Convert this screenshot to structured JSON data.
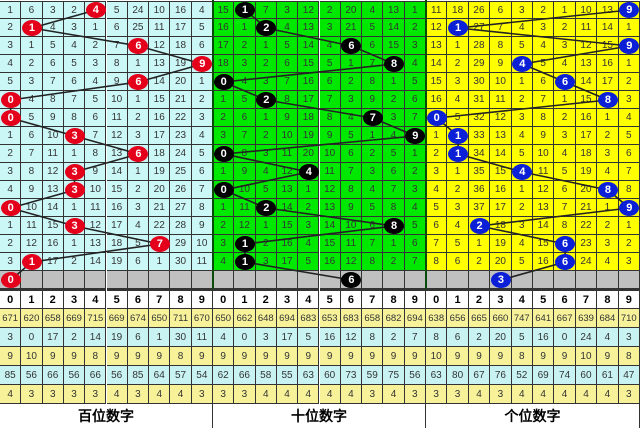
{
  "panels": [
    {
      "title": "百位数字",
      "colors": {
        "grid_bg": "#ccf7f7",
        "ball": "#e4001b",
        "ball_text": "#ffffff",
        "line": "#222222"
      },
      "rows": [
        {
          "cells": [
            1,
            6,
            3,
            2,
            4,
            5,
            24,
            10,
            16,
            4
          ],
          "hit": 4
        },
        {
          "cells": [
            2,
            1,
            4,
            3,
            1,
            6,
            25,
            11,
            17,
            5
          ],
          "hit": 1
        },
        {
          "cells": [
            3,
            1,
            5,
            4,
            2,
            7,
            6,
            12,
            18,
            6
          ],
          "hit": 6
        },
        {
          "cells": [
            4,
            2,
            6,
            5,
            3,
            8,
            1,
            13,
            19,
            9
          ],
          "hit": 9
        },
        {
          "cells": [
            5,
            3,
            7,
            6,
            4,
            9,
            6,
            14,
            20,
            1
          ],
          "hit": 6
        },
        {
          "cells": [
            0,
            4,
            8,
            7,
            5,
            10,
            1,
            15,
            21,
            2
          ],
          "hit": 0
        },
        {
          "cells": [
            0,
            5,
            9,
            8,
            6,
            11,
            2,
            16,
            22,
            3
          ],
          "hit": 0
        },
        {
          "cells": [
            1,
            6,
            10,
            3,
            7,
            12,
            3,
            17,
            23,
            4
          ],
          "hit": 3
        },
        {
          "cells": [
            2,
            7,
            11,
            1,
            8,
            13,
            6,
            18,
            24,
            5
          ],
          "hit": 6
        },
        {
          "cells": [
            3,
            8,
            12,
            3,
            9,
            14,
            1,
            19,
            25,
            6
          ],
          "hit": 3
        },
        {
          "cells": [
            4,
            9,
            13,
            3,
            10,
            15,
            2,
            20,
            26,
            7
          ],
          "hit": 3
        },
        {
          "cells": [
            0,
            10,
            14,
            1,
            11,
            16,
            3,
            21,
            27,
            8
          ],
          "hit": 0
        },
        {
          "cells": [
            1,
            11,
            15,
            3,
            12,
            17,
            4,
            22,
            28,
            9
          ],
          "hit": 3
        },
        {
          "cells": [
            2,
            12,
            16,
            1,
            13,
            18,
            5,
            7,
            29,
            10
          ],
          "hit": 7
        },
        {
          "cells": [
            3,
            1,
            17,
            2,
            14,
            19,
            6,
            1,
            30,
            11
          ],
          "hit": 1
        },
        {
          "cells": [
            "",
            "",
            "",
            "",
            "",
            "",
            "",
            "",
            "",
            ""
          ],
          "hit": 0,
          "pending": true
        }
      ],
      "header": [
        "0",
        "1",
        "2",
        "3",
        "4",
        "5",
        "6",
        "7",
        "8",
        "9"
      ],
      "stats": [
        [
          671,
          620,
          658,
          669,
          715,
          669,
          674,
          650,
          711,
          670
        ],
        [
          3,
          0,
          17,
          2,
          14,
          19,
          6,
          1,
          30,
          11
        ],
        [
          9,
          10,
          9,
          9,
          8,
          9,
          9,
          9,
          8,
          9
        ],
        [
          85,
          56,
          66,
          56,
          66,
          56,
          85,
          64,
          57,
          54
        ],
        [
          4,
          3,
          3,
          3,
          3,
          4,
          3,
          4,
          4,
          3
        ]
      ]
    },
    {
      "title": "十位数字",
      "colors": {
        "grid_bg": "#00e800",
        "ball": "#000000",
        "ball_text": "#ffffff",
        "line": "#222222"
      },
      "rows": [
        {
          "cells": [
            15,
            1,
            7,
            3,
            12,
            2,
            20,
            4,
            13,
            1
          ],
          "hit": 1
        },
        {
          "cells": [
            16,
            1,
            2,
            4,
            13,
            3,
            21,
            5,
            14,
            2
          ],
          "hit": 2
        },
        {
          "cells": [
            17,
            2,
            1,
            5,
            14,
            4,
            6,
            6,
            15,
            3
          ],
          "hit": 6
        },
        {
          "cells": [
            18,
            3,
            2,
            6,
            15,
            5,
            1,
            7,
            8,
            4
          ],
          "hit": 8
        },
        {
          "cells": [
            0,
            4,
            3,
            7,
            16,
            6,
            2,
            8,
            1,
            5
          ],
          "hit": 0
        },
        {
          "cells": [
            1,
            5,
            2,
            8,
            17,
            7,
            3,
            9,
            2,
            6
          ],
          "hit": 2
        },
        {
          "cells": [
            2,
            6,
            1,
            9,
            18,
            8,
            4,
            7,
            3,
            7
          ],
          "hit": 7
        },
        {
          "cells": [
            3,
            7,
            2,
            10,
            19,
            9,
            5,
            1,
            4,
            9
          ],
          "hit": 9
        },
        {
          "cells": [
            0,
            8,
            3,
            11,
            20,
            10,
            6,
            2,
            5,
            1
          ],
          "hit": 0
        },
        {
          "cells": [
            1,
            9,
            4,
            12,
            4,
            11,
            7,
            3,
            6,
            2
          ],
          "hit": 4
        },
        {
          "cells": [
            0,
            10,
            5,
            13,
            1,
            12,
            8,
            4,
            7,
            3
          ],
          "hit": 0
        },
        {
          "cells": [
            1,
            11,
            2,
            14,
            2,
            13,
            9,
            5,
            8,
            4
          ],
          "hit": 2
        },
        {
          "cells": [
            2,
            12,
            1,
            15,
            3,
            14,
            10,
            6,
            8,
            5
          ],
          "hit": 8
        },
        {
          "cells": [
            3,
            1,
            2,
            16,
            4,
            15,
            11,
            7,
            1,
            6
          ],
          "hit": 1
        },
        {
          "cells": [
            4,
            1,
            3,
            17,
            5,
            16,
            12,
            8,
            2,
            7
          ],
          "hit": 1
        },
        {
          "cells": [
            "",
            "",
            "",
            "",
            "",
            "",
            "",
            "",
            "",
            ""
          ],
          "hit": 6,
          "pending": true
        }
      ],
      "header": [
        "0",
        "1",
        "2",
        "3",
        "4",
        "5",
        "6",
        "7",
        "8",
        "9"
      ],
      "stats": [
        [
          650,
          662,
          648,
          694,
          683,
          653,
          683,
          658,
          682,
          694
        ],
        [
          4,
          0,
          3,
          17,
          5,
          16,
          12,
          8,
          2,
          7
        ],
        [
          9,
          9,
          9,
          9,
          9,
          9,
          9,
          9,
          9,
          9
        ],
        [
          62,
          66,
          58,
          55,
          63,
          60,
          73,
          59,
          75,
          56
        ],
        [
          3,
          3,
          4,
          4,
          4,
          4,
          4,
          3,
          4,
          3
        ]
      ]
    },
    {
      "title": "个位数字",
      "colors": {
        "grid_bg": "#ffff00",
        "ball": "#0a1fd6",
        "ball_text": "#ffffff",
        "line": "#222222"
      },
      "rows": [
        {
          "cells": [
            11,
            18,
            26,
            6,
            3,
            2,
            1,
            10,
            13,
            9
          ],
          "hit": 9
        },
        {
          "cells": [
            12,
            1,
            27,
            7,
            4,
            3,
            2,
            11,
            14,
            1
          ],
          "hit": 1
        },
        {
          "cells": [
            13,
            1,
            28,
            8,
            5,
            4,
            3,
            12,
            15,
            9
          ],
          "hit": 9
        },
        {
          "cells": [
            14,
            2,
            29,
            9,
            4,
            5,
            4,
            13,
            16,
            1
          ],
          "hit": 4
        },
        {
          "cells": [
            15,
            3,
            30,
            10,
            1,
            6,
            6,
            14,
            17,
            2
          ],
          "hit": 6
        },
        {
          "cells": [
            16,
            4,
            31,
            11,
            2,
            7,
            1,
            15,
            8,
            3
          ],
          "hit": 8
        },
        {
          "cells": [
            0,
            5,
            32,
            12,
            3,
            8,
            2,
            16,
            1,
            4
          ],
          "hit": 0
        },
        {
          "cells": [
            1,
            1,
            33,
            13,
            4,
            9,
            3,
            17,
            2,
            5
          ],
          "hit": 1
        },
        {
          "cells": [
            2,
            1,
            34,
            14,
            5,
            10,
            4,
            18,
            3,
            6
          ],
          "hit": 1
        },
        {
          "cells": [
            3,
            1,
            35,
            15,
            4,
            11,
            5,
            19,
            4,
            7
          ],
          "hit": 4
        },
        {
          "cells": [
            4,
            2,
            36,
            16,
            1,
            12,
            6,
            20,
            8,
            8
          ],
          "hit": 8
        },
        {
          "cells": [
            5,
            3,
            37,
            17,
            2,
            13,
            7,
            21,
            1,
            9
          ],
          "hit": 9
        },
        {
          "cells": [
            6,
            4,
            2,
            18,
            3,
            14,
            8,
            22,
            2,
            1
          ],
          "hit": 2
        },
        {
          "cells": [
            7,
            5,
            1,
            19,
            4,
            15,
            6,
            23,
            3,
            2
          ],
          "hit": 6
        },
        {
          "cells": [
            8,
            6,
            2,
            20,
            5,
            16,
            6,
            24,
            4,
            3
          ],
          "hit": 6
        },
        {
          "cells": [
            "",
            "",
            "",
            "",
            "",
            "",
            "",
            "",
            "",
            ""
          ],
          "hit": 3,
          "pending": true
        }
      ],
      "header": [
        "0",
        "1",
        "2",
        "3",
        "4",
        "5",
        "6",
        "7",
        "8",
        "9"
      ],
      "stats": [
        [
          638,
          656,
          665,
          660,
          747,
          641,
          667,
          639,
          684,
          710
        ],
        [
          8,
          6,
          2,
          20,
          5,
          16,
          0,
          24,
          4,
          3
        ],
        [
          10,
          9,
          9,
          9,
          8,
          9,
          9,
          10,
          9,
          8
        ],
        [
          63,
          80,
          67,
          76,
          52,
          69,
          74,
          60,
          61,
          47
        ],
        [
          3,
          3,
          4,
          3,
          4,
          4,
          4,
          4,
          4,
          3
        ]
      ]
    }
  ],
  "style": {
    "pending_row_bg": "#c0c0c0",
    "stat_row_colors": [
      "#f7f29a",
      "#c9f3f3",
      "#f7f29a",
      "#c9f3f3",
      "#f7f29a"
    ]
  }
}
